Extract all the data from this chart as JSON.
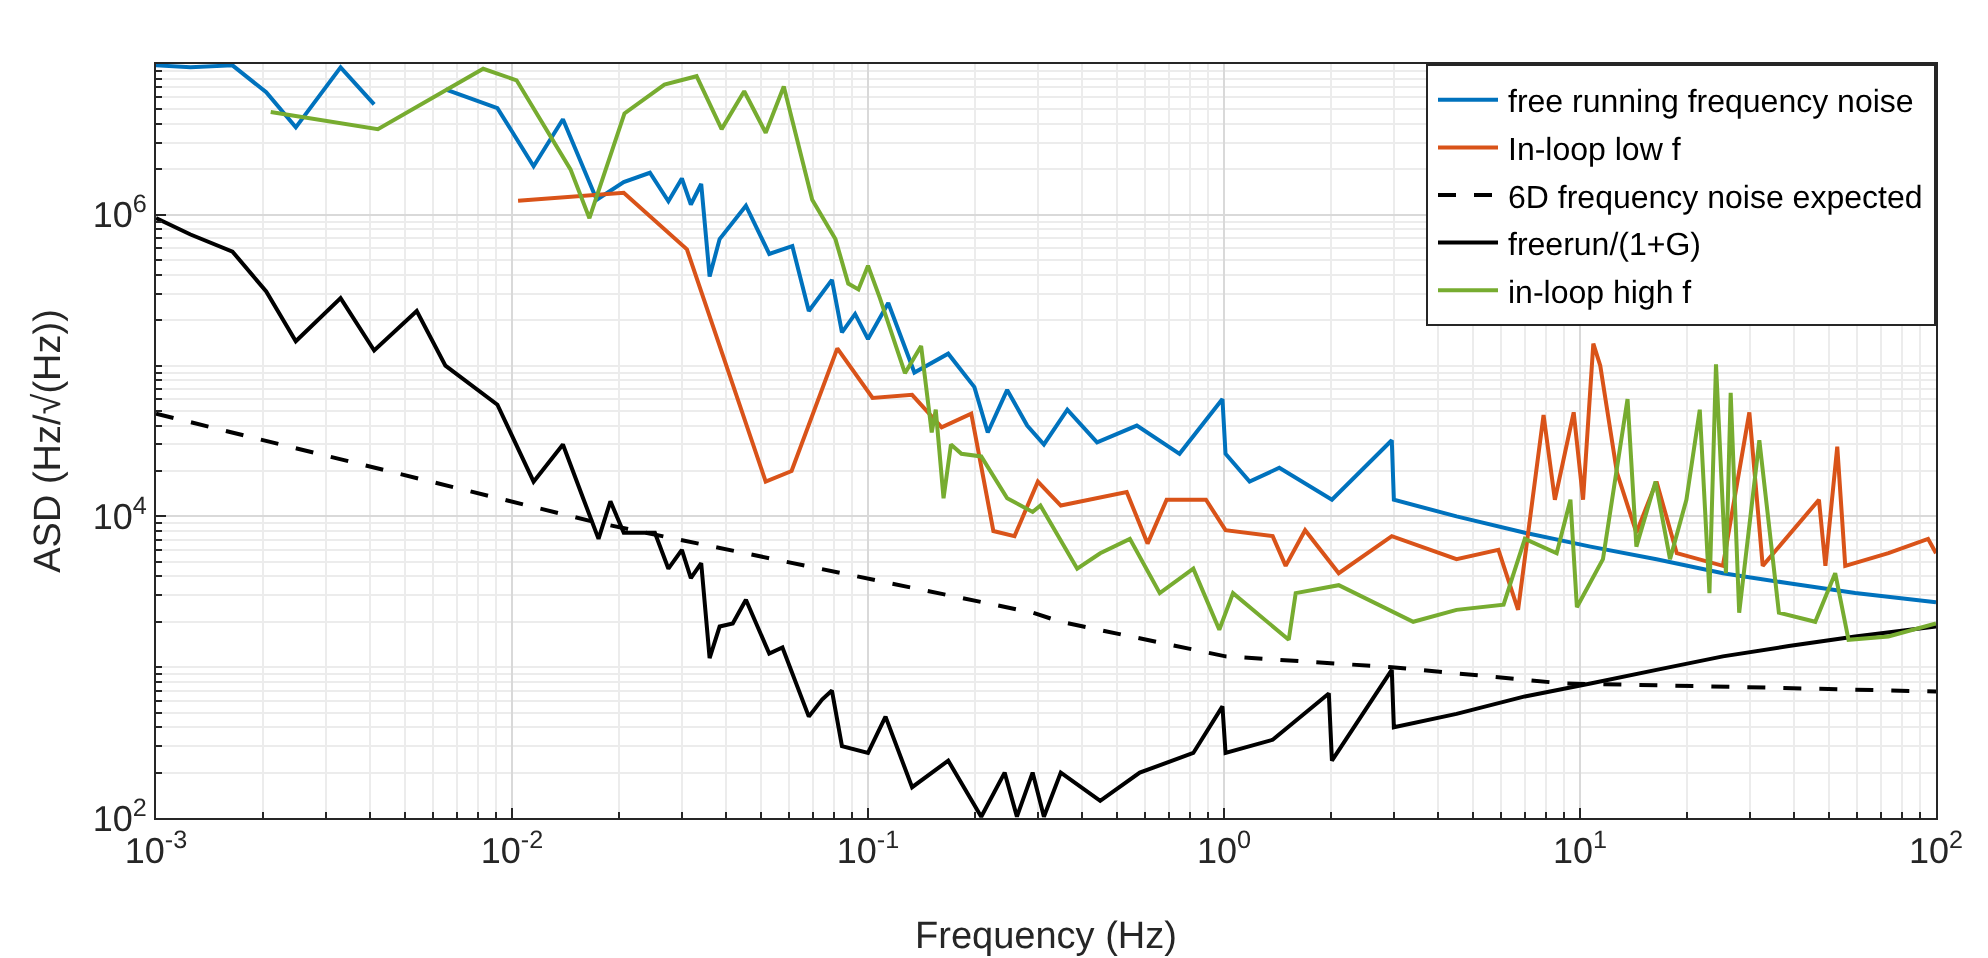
{
  "chart_data": {
    "type": "line",
    "xlabel": "Frequency (Hz)",
    "ylabel": "ASD (Hz/√(Hz))",
    "log": "xy",
    "grid": true,
    "legend": "top right",
    "marker": "none",
    "xlim": [
      0.001,
      100
    ],
    "ylim": [
      100,
      10000000
    ],
    "xticks": [
      {
        "value": 0.001,
        "label": "10$^{-3}$"
      },
      {
        "value": 0.01,
        "label": "10$^{-2}$"
      },
      {
        "value": 0.1,
        "label": "10$^{-1}$"
      },
      {
        "value": 1,
        "label": "10$^{0}$"
      },
      {
        "value": 10,
        "label": "10$^{1}$"
      },
      {
        "value": 100,
        "label": "10$^{2}$"
      }
    ],
    "yticks": [
      {
        "value": 100,
        "label": "10$^{2}$"
      },
      {
        "value": 10000,
        "label": "10$^{4}$"
      },
      {
        "value": 1000000,
        "label": "10$^{6}$"
      }
    ],
    "series": [
      {
        "name": "free running frequency noise",
        "color": "#0072bd",
        "line_style": "solid",
        "x": [
          0.001,
          0.00125,
          0.00164,
          0.00204,
          0.00247,
          0.0033,
          0.0041,
          0.0054,
          0.0065,
          0.0091,
          0.0115,
          0.0139,
          0.0173,
          0.0206,
          0.0244,
          0.0275,
          0.03,
          0.0318,
          0.034,
          0.0359,
          0.0383,
          0.0454,
          0.0528,
          0.0613,
          0.0682,
          0.0792,
          0.0845,
          0.092,
          0.1,
          0.114,
          0.135,
          0.168,
          0.199,
          0.217,
          0.246,
          0.28,
          0.312,
          0.363,
          0.44,
          0.569,
          0.75,
          0.99,
          1.01,
          1.18,
          1.43,
          2.01,
          2.96,
          3.0,
          4.5,
          7.0,
          10.7,
          16.4,
          25.2,
          38.6,
          59.3,
          100
        ],
        "values": [
          9800000,
          9500000,
          9800000,
          6500000,
          3800000,
          9500000,
          5400000,
          null,
          6800000,
          5100000,
          2100000,
          4300000,
          1260000,
          1650000,
          1900000,
          1230000,
          1740000,
          1170000,
          1600000,
          390000,
          690000,
          1150000,
          550000,
          620000,
          230000,
          370000,
          166000,
          220000,
          150000,
          260000,
          90000,
          120000,
          72000,
          36000,
          69000,
          40000,
          30000,
          51000,
          31000,
          40000,
          26000,
          60000,
          26000,
          17000,
          21000,
          12900,
          32000,
          12900,
          10000,
          7800,
          6300,
          5200,
          4200,
          3600,
          3100,
          2700
        ]
      },
      {
        "name": "In-loop low f",
        "color": "#d95319",
        "line_style": "solid",
        "x": [
          0.0104,
          0.0206,
          0.031,
          0.0516,
          0.061,
          0.082,
          0.103,
          0.133,
          0.161,
          0.195,
          0.225,
          0.258,
          0.3,
          0.348,
          0.533,
          0.61,
          0.69,
          0.89,
          1.01,
          1.37,
          1.49,
          1.69,
          2.1,
          2.96,
          4.5,
          5.9,
          6.7,
          7.9,
          8.5,
          9.6,
          10.2,
          10.9,
          11.4,
          12.7,
          14.4,
          16.4,
          18.7,
          25.2,
          29.9,
          32.6,
          46.9,
          48.9,
          52.8,
          55.6,
          73.5,
          95,
          100
        ],
        "values": [
          1240000,
          1400000,
          590000,
          17000,
          20000,
          130000,
          61000,
          64000,
          39000,
          48000,
          8000,
          7400,
          17000,
          11800,
          14500,
          6600,
          12900,
          12900,
          8100,
          7400,
          4700,
          8100,
          4200,
          7400,
          5200,
          6000,
          2400,
          47000,
          12900,
          49000,
          12900,
          140000,
          100000,
          19500,
          7800,
          17000,
          5700,
          4700,
          49000,
          4700,
          12900,
          4700,
          29000,
          4700,
          5700,
          7100,
          5700
        ]
      },
      {
        "name": "6D frequency noise expected",
        "color": "#000000",
        "line_style": "dashed",
        "x": [
          0.001,
          0.0173,
          0.29,
          0.348,
          1.01,
          2.96,
          9.0,
          21.2,
          100
        ],
        "values": [
          48000,
          9100,
          2300,
          2000,
          1180,
          1000,
          780,
          750,
          690
        ]
      },
      {
        "name": "freerun/(1+G)",
        "color": "#000000",
        "line_style": "solid",
        "x": [
          0.001,
          0.00125,
          0.00164,
          0.00204,
          0.00247,
          0.0033,
          0.0041,
          0.0054,
          0.0065,
          0.0091,
          0.0115,
          0.0139,
          0.0159,
          0.0175,
          0.0189,
          0.0206,
          0.0252,
          0.0275,
          0.03,
          0.0318,
          0.034,
          0.0359,
          0.0383,
          0.0417,
          0.0454,
          0.0528,
          0.0575,
          0.0682,
          0.0743,
          0.0792,
          0.0845,
          0.1,
          0.112,
          0.133,
          0.168,
          0.208,
          0.242,
          0.262,
          0.29,
          0.312,
          0.348,
          0.449,
          0.58,
          0.82,
          0.99,
          1.01,
          1.37,
          1.97,
          2.01,
          2.96,
          3.0,
          4.5,
          7.0,
          10.7,
          16.4,
          25.2,
          38.6,
          59.3,
          100
        ],
        "values": [
          950000,
          740000,
          570000,
          310000,
          145000,
          280000,
          126000,
          230000,
          100000,
          55000,
          17000,
          30000,
          12900,
          7100,
          12600,
          7800,
          7800,
          4500,
          6000,
          3900,
          4900,
          1150,
          1860,
          1950,
          2800,
          1230,
          1350,
          470,
          610,
          700,
          300,
          270,
          470,
          160,
          240,
          102,
          200,
          102,
          200,
          102,
          200,
          130,
          200,
          270,
          550,
          270,
          330,
          670,
          240,
          960,
          400,
          490,
          640,
          780,
          960,
          1180,
          1380,
          1600,
          1860
        ]
      },
      {
        "name": "in-loop high f",
        "color": "#77ac30",
        "line_style": "solid",
        "x": [
          0.0021,
          0.0042,
          0.0083,
          0.0103,
          0.0146,
          0.0165,
          0.0207,
          0.0268,
          0.033,
          0.0388,
          0.0449,
          0.0516,
          0.058,
          0.0697,
          0.081,
          0.088,
          0.094,
          0.1,
          0.108,
          0.127,
          0.141,
          0.151,
          0.155,
          0.163,
          0.171,
          0.183,
          0.208,
          0.246,
          0.29,
          0.305,
          0.387,
          0.449,
          0.544,
          0.66,
          0.82,
          0.97,
          1.06,
          1.52,
          1.59,
          2.1,
          3.4,
          4.5,
          6.1,
          7.0,
          8.6,
          9.4,
          9.8,
          11.6,
          13.6,
          14.4,
          16.3,
          17.9,
          19.9,
          21.7,
          23.1,
          24.1,
          25.7,
          26.5,
          28,
          31.9,
          36.2,
          45.8,
          52.1,
          56.8,
          73.5,
          100
        ],
        "values": [
          4800000,
          3700000,
          9300000,
          7800000,
          2000000,
          950000,
          4700000,
          7300000,
          8300000,
          3700000,
          6600000,
          3500000,
          7100000,
          1260000,
          690000,
          350000,
          320000,
          460000,
          280000,
          89000,
          135000,
          36000,
          51000,
          13200,
          30000,
          26000,
          25000,
          13200,
          10700,
          11800,
          4500,
          5700,
          7100,
          3100,
          4500,
          1770,
          3100,
          1520,
          3100,
          3500,
          2000,
          2400,
          2600,
          7100,
          5700,
          12900,
          2500,
          5200,
          60000,
          6300,
          17000,
          5200,
          12900,
          51000,
          3100,
          102000,
          4200,
          66000,
          2300,
          32000,
          2300,
          2000,
          4200,
          1520,
          1600,
          1950
        ]
      }
    ]
  }
}
